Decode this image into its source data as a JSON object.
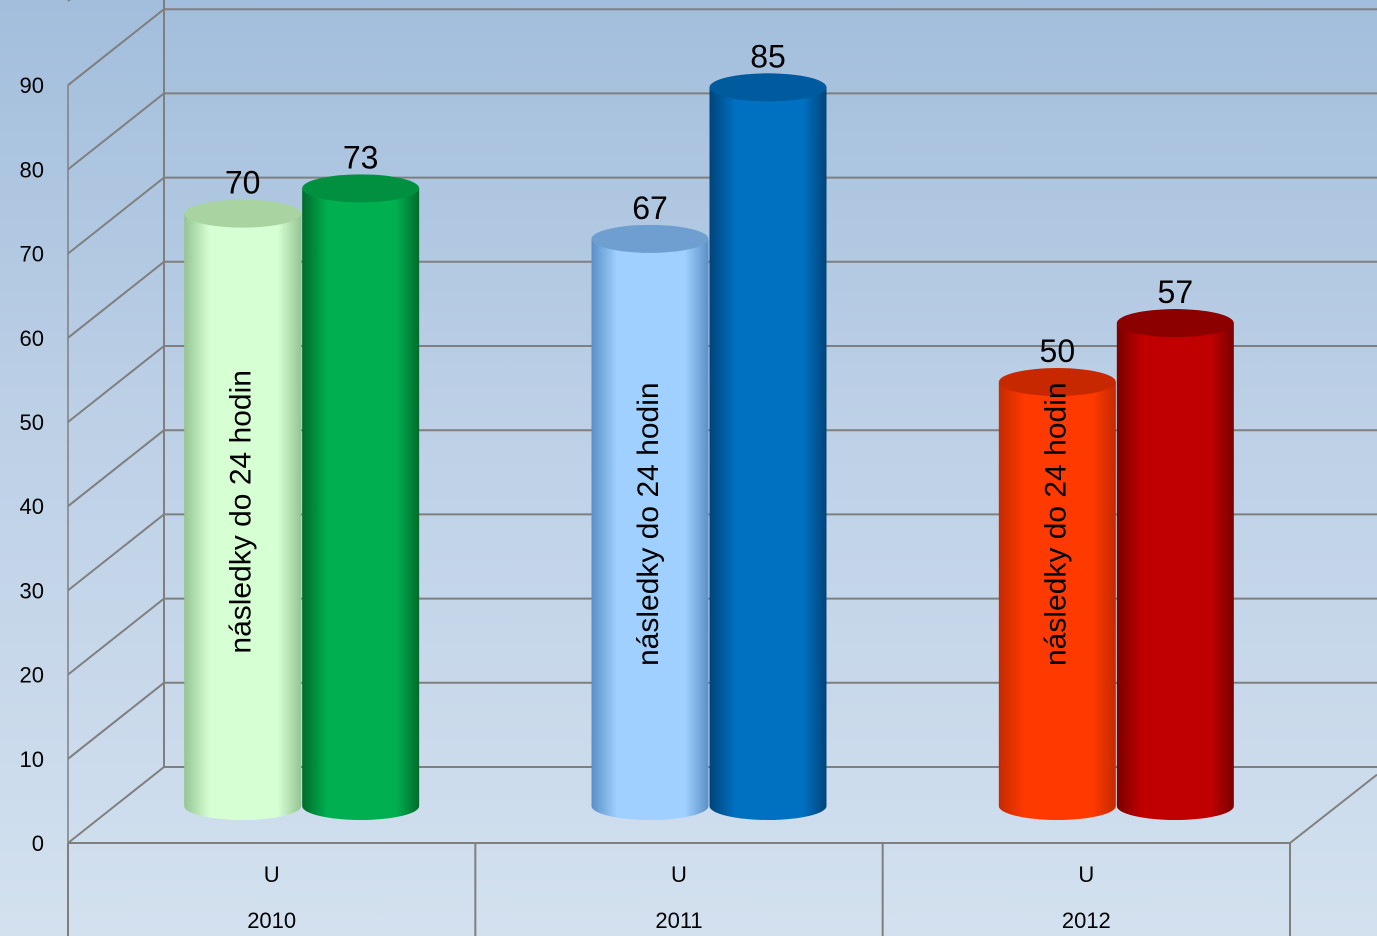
{
  "chart_data": {
    "type": "bar",
    "ylim": [
      0,
      90
    ],
    "y_ticks": [
      "0",
      "10",
      "20",
      "30",
      "40",
      "50",
      "60",
      "70",
      "80",
      "90"
    ],
    "grid": true,
    "categories": [
      {
        "top": "U",
        "bottom": "2010"
      },
      {
        "top": "U",
        "bottom": "2011"
      },
      {
        "top": "U",
        "bottom": "2012"
      }
    ],
    "groups": [
      {
        "bars": [
          {
            "value": 70,
            "label": "70",
            "inner_text": "následky do 24 hodin",
            "color": "#d6ffd4",
            "dark": "#95c493",
            "top_color": "#a9d4a2"
          },
          {
            "value": 73,
            "label": "73",
            "inner_text": "",
            "color": "#00b050",
            "dark": "#006b2c",
            "top_color": "#009040"
          }
        ]
      },
      {
        "bars": [
          {
            "value": 67,
            "label": "67",
            "inner_text": "následky do 24 hodin",
            "color": "#9fd0ff",
            "dark": "#5b8fc6",
            "top_color": "#6f9fd0"
          },
          {
            "value": 85,
            "label": "85",
            "inner_text": "",
            "color": "#0070c0",
            "dark": "#00447a",
            "top_color": "#005a9e"
          }
        ]
      },
      {
        "bars": [
          {
            "value": 50,
            "label": "50",
            "inner_text": "následky do 24 hodin",
            "color": "#ff3a00",
            "dark": "#c42a00",
            "top_color": "#c82800"
          },
          {
            "value": 57,
            "label": "57",
            "inner_text": "",
            "color": "#c00000",
            "dark": "#7a0000",
            "top_color": "#8c0000"
          }
        ]
      }
    ]
  }
}
